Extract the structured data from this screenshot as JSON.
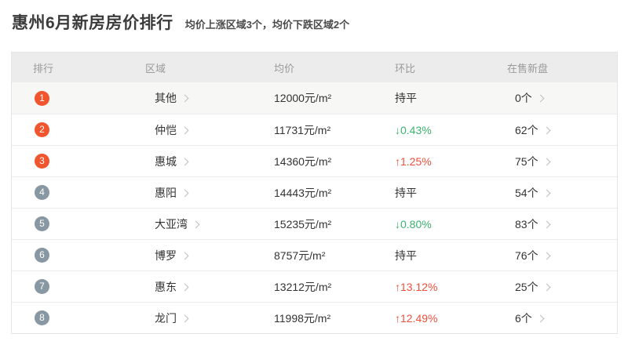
{
  "page": {
    "title": "惠州6月新房房价排行",
    "subtitle": "均价上涨区域3个，均价下跌区域2个"
  },
  "table": {
    "headers": [
      "排行",
      "区域",
      "均价",
      "环比",
      "在售新盘"
    ],
    "rows": [
      {
        "rank": "1",
        "rank_tier": "top3",
        "area": "其他",
        "price": "12000元/m²",
        "change": "持平",
        "change_dir": "flat",
        "count": "0个"
      },
      {
        "rank": "2",
        "rank_tier": "top3",
        "area": "仲恺",
        "price": "11731元/m²",
        "change": "0.43%",
        "change_dir": "down",
        "count": "62个"
      },
      {
        "rank": "3",
        "rank_tier": "top3",
        "area": "惠城",
        "price": "14360元/m²",
        "change": "1.25%",
        "change_dir": "up",
        "count": "75个"
      },
      {
        "rank": "4",
        "rank_tier": "other",
        "area": "惠阳",
        "price": "14443元/m²",
        "change": "持平",
        "change_dir": "flat",
        "count": "54个"
      },
      {
        "rank": "5",
        "rank_tier": "other",
        "area": "大亚湾",
        "price": "15235元/m²",
        "change": "0.80%",
        "change_dir": "down",
        "count": "83个"
      },
      {
        "rank": "6",
        "rank_tier": "other",
        "area": "博罗",
        "price": "8757元/m²",
        "change": "持平",
        "change_dir": "flat",
        "count": "76个"
      },
      {
        "rank": "7",
        "rank_tier": "other",
        "area": "惠东",
        "price": "13212元/m²",
        "change": "13.12%",
        "change_dir": "up",
        "count": "25个"
      },
      {
        "rank": "8",
        "rank_tier": "other",
        "area": "龙门",
        "price": "11998元/m²",
        "change": "12.49%",
        "change_dir": "up",
        "count": "6个"
      }
    ],
    "glyphs": {
      "arrow_up": "↑",
      "arrow_down": "↓"
    },
    "colors": {
      "rank_top3_bg": "#f0552e",
      "rank_other_bg": "#8898a3",
      "up_text": "#f0503c",
      "down_text": "#3ab46e",
      "flat_text": "#333333",
      "header_bg": "#ececec",
      "header_text": "#9a9a9a",
      "highlight_row_bg": "#f7f7f5"
    }
  }
}
